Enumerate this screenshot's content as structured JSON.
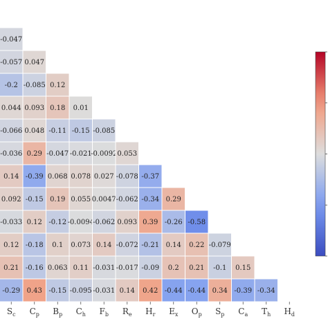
{
  "chart_data": {
    "type": "heatmap",
    "shape": "lower-triangle",
    "colormap": "coolwarm",
    "vmin": -1,
    "vmax": 1,
    "x_ticks": [
      {
        "base": "S",
        "sub": "c"
      },
      {
        "base": "C",
        "sub": "p"
      },
      {
        "base": "B",
        "sub": "p"
      },
      {
        "base": "C",
        "sub": "h"
      },
      {
        "base": "F",
        "sub": "b"
      },
      {
        "base": "R",
        "sub": "e"
      },
      {
        "base": "H",
        "sub": "r"
      },
      {
        "base": "E",
        "sub": "x"
      },
      {
        "base": "O",
        "sub": "p"
      },
      {
        "base": "S",
        "sub": "p"
      },
      {
        "base": "C",
        "sub": "a"
      },
      {
        "base": "T",
        "sub": "h"
      },
      {
        "base": "H",
        "sub": "d"
      }
    ],
    "rows": [
      [
        "-0.047"
      ],
      [
        "-0.057",
        "0.047"
      ],
      [
        "-0.2",
        "-0.085",
        "0.12"
      ],
      [
        "0.044",
        "0.093",
        "0.18",
        "0.01"
      ],
      [
        "-0.066",
        "0.048",
        "-0.11",
        "-0.15",
        "-0.085"
      ],
      [
        "-0.036",
        "0.29",
        "-0.047",
        "-0.021",
        "-0.0092",
        "0.053"
      ],
      [
        "0.14",
        "-0.39",
        "0.068",
        "0.078",
        "0.027",
        "-0.078",
        "-0.37"
      ],
      [
        "0.092",
        "-0.15",
        "0.19",
        "0.055",
        "0.0047",
        "-0.062",
        "-0.34",
        "0.29"
      ],
      [
        "-0.033",
        "0.12",
        "-0.12",
        "-0.0094",
        "-0.062",
        "0.093",
        "0.39",
        "-0.26",
        "-0.58"
      ],
      [
        "0.12",
        "-0.18",
        "0.1",
        "0.073",
        "0.14",
        "-0.072",
        "-0.21",
        "0.14",
        "0.22",
        "-0.079"
      ],
      [
        "0.21",
        "-0.16",
        "0.063",
        "0.11",
        "-0.031",
        "-0.017",
        "-0.09",
        "0.2",
        "0.21",
        "-0.1",
        "0.15"
      ],
      [
        "-0.29",
        "0.43",
        "-0.15",
        "-0.095",
        "-0.031",
        "0.14",
        "0.42",
        "-0.44",
        "-0.44",
        "0.34",
        "-0.39",
        "-0.34"
      ]
    ]
  }
}
